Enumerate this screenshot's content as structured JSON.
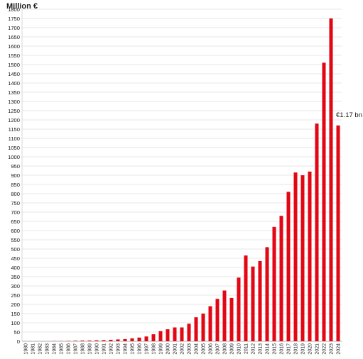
{
  "chart_data": {
    "type": "bar",
    "ylabel": "Million €",
    "xlabel": "",
    "ylim": [
      0,
      1800
    ],
    "y_ticks": [
      0,
      50,
      100,
      150,
      200,
      250,
      300,
      350,
      400,
      450,
      500,
      550,
      600,
      650,
      700,
      750,
      800,
      850,
      900,
      950,
      1000,
      1050,
      1100,
      1150,
      1200,
      1250,
      1300,
      1350,
      1400,
      1450,
      1500,
      1550,
      1600,
      1650,
      1700,
      1750,
      1800
    ],
    "grid": true,
    "bar_color": "#e30613",
    "categories": [
      "1980",
      "1981",
      "1982",
      "1983",
      "1984",
      "1985",
      "1986",
      "1987",
      "1988",
      "1989",
      "1990",
      "1991",
      "1992",
      "1993",
      "1994",
      "1995",
      "1996",
      "1997",
      "1998",
      "1999",
      "2000",
      "2001",
      "2002",
      "2003",
      "2004",
      "2005",
      "2006",
      "2007",
      "2008",
      "2009",
      "2010",
      "2011",
      "2012",
      "2013",
      "2014",
      "2015",
      "2016",
      "2017",
      "2018",
      "2019",
      "2020",
      "2021",
      "2022",
      "2023",
      "2024"
    ],
    "values": [
      0,
      0,
      0,
      0,
      1,
      1,
      2,
      3,
      4,
      4,
      5,
      6,
      8,
      10,
      12,
      16,
      20,
      26,
      38,
      55,
      65,
      75,
      75,
      95,
      130,
      150,
      190,
      230,
      275,
      235,
      345,
      465,
      405,
      435,
      510,
      620,
      680,
      810,
      915,
      900,
      920,
      1180,
      1510,
      1750,
      1170
    ],
    "annotations": [
      {
        "category": "2024",
        "text": "€1.17 bn"
      }
    ]
  }
}
